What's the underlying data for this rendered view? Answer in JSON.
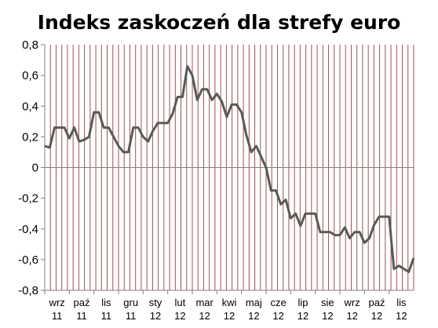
{
  "chart_data": {
    "type": "line",
    "title": "Indeks zaskoczeń dla strefy euro",
    "xlabel": "",
    "ylabel": "",
    "ylim": [
      -0.8,
      0.8
    ],
    "y_ticks": [
      "0,8",
      "0,6",
      "0,4",
      "0,2",
      "0",
      "-0,2",
      "-0,4",
      "-0,6",
      "-0,8"
    ],
    "x_tick_labels": [
      {
        "month": "wrz",
        "year": "11"
      },
      {
        "month": "paź",
        "year": "11"
      },
      {
        "month": "lis",
        "year": "11"
      },
      {
        "month": "gru",
        "year": "11"
      },
      {
        "month": "sty",
        "year": "12"
      },
      {
        "month": "lut",
        "year": "12"
      },
      {
        "month": "mar",
        "year": "12"
      },
      {
        "month": "kwi",
        "year": "12"
      },
      {
        "month": "maj",
        "year": "12"
      },
      {
        "month": "cze",
        "year": "12"
      },
      {
        "month": "lip",
        "year": "12"
      },
      {
        "month": "sie",
        "year": "12"
      },
      {
        "month": "wrz",
        "year": "12"
      },
      {
        "month": "paź",
        "year": "12"
      },
      {
        "month": "lis",
        "year": "12"
      }
    ],
    "grid": "vertical",
    "grid_color": "#a05050",
    "line_color": "#595959",
    "series": [
      {
        "name": "",
        "x": [
          0.0,
          0.2,
          0.4,
          0.6,
          0.8,
          1.0,
          1.2,
          1.4,
          1.6,
          1.8,
          2.0,
          2.2,
          2.4,
          2.6,
          2.8,
          3.0,
          3.2,
          3.4,
          3.6,
          3.8,
          4.0,
          4.2,
          4.4,
          4.6,
          4.8,
          5.0,
          5.2,
          5.4,
          5.6,
          5.8,
          6.0,
          6.2,
          6.4,
          6.6,
          6.8,
          7.0,
          7.2,
          7.4,
          7.6,
          7.8,
          8.0,
          8.2,
          8.4,
          8.6,
          8.8,
          9.0,
          9.2,
          9.4,
          9.6,
          9.8,
          10.0,
          10.2,
          10.4,
          10.6,
          10.8,
          11.0,
          11.2,
          11.4,
          11.6,
          11.8,
          12.0,
          12.2,
          12.4,
          12.6,
          12.8,
          13.0,
          13.2,
          13.4,
          13.6,
          13.8,
          14.0,
          14.2,
          14.4,
          14.6,
          14.8,
          15.0
        ],
        "y": [
          0.14,
          0.13,
          0.26,
          0.26,
          0.26,
          0.19,
          0.26,
          0.17,
          0.18,
          0.2,
          0.36,
          0.36,
          0.26,
          0.26,
          0.2,
          0.14,
          0.1,
          0.1,
          0.26,
          0.26,
          0.2,
          0.17,
          0.24,
          0.29,
          0.29,
          0.29,
          0.35,
          0.46,
          0.46,
          0.66,
          0.6,
          0.44,
          0.51,
          0.51,
          0.44,
          0.48,
          0.43,
          0.33,
          0.41,
          0.41,
          0.36,
          0.21,
          0.1,
          0.14,
          0.07,
          0.0,
          -0.15,
          -0.15,
          -0.24,
          -0.21,
          -0.33,
          -0.3,
          -0.38,
          -0.3,
          -0.3,
          -0.3,
          -0.42,
          -0.42,
          -0.42,
          -0.44,
          -0.44,
          -0.39,
          -0.46,
          -0.42,
          -0.42,
          -0.49,
          -0.46,
          -0.37,
          -0.32,
          -0.32,
          -0.32,
          -0.66,
          -0.64,
          -0.66,
          -0.68,
          -0.59
        ]
      }
    ]
  }
}
